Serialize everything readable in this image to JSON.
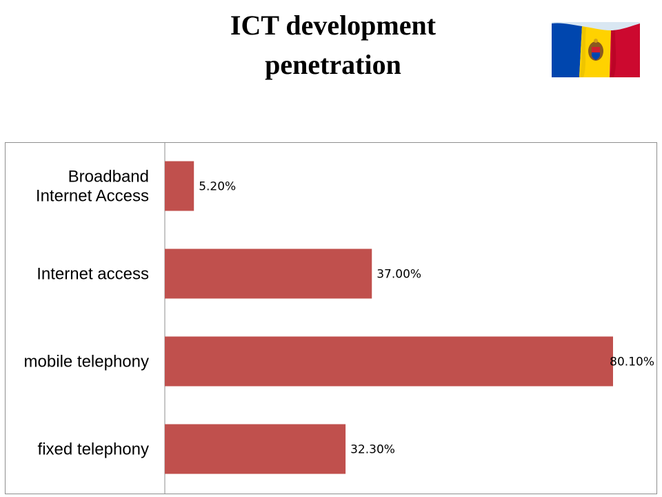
{
  "title": {
    "line1": "ICT development",
    "line2": "penetration"
  },
  "flag": {
    "icon": "moldova-flag-icon",
    "colors": {
      "blue": "#0046AE",
      "yellow": "#FFD200",
      "red": "#CC092F"
    }
  },
  "chart_data": {
    "type": "bar",
    "orientation": "horizontal",
    "categories": [
      [
        "Broadband",
        "Internet Access"
      ],
      [
        "Internet access"
      ],
      [
        "mobile telephony"
      ],
      [
        "fixed telephony"
      ]
    ],
    "values": [
      5.2,
      37.0,
      80.1,
      32.3
    ],
    "value_labels": [
      "5.20%",
      "37.00%",
      "80.10%",
      "32.30%"
    ],
    "xlim": [
      0,
      80.1
    ],
    "bar_color": "#C0504D",
    "grid": false,
    "legend": "none"
  }
}
